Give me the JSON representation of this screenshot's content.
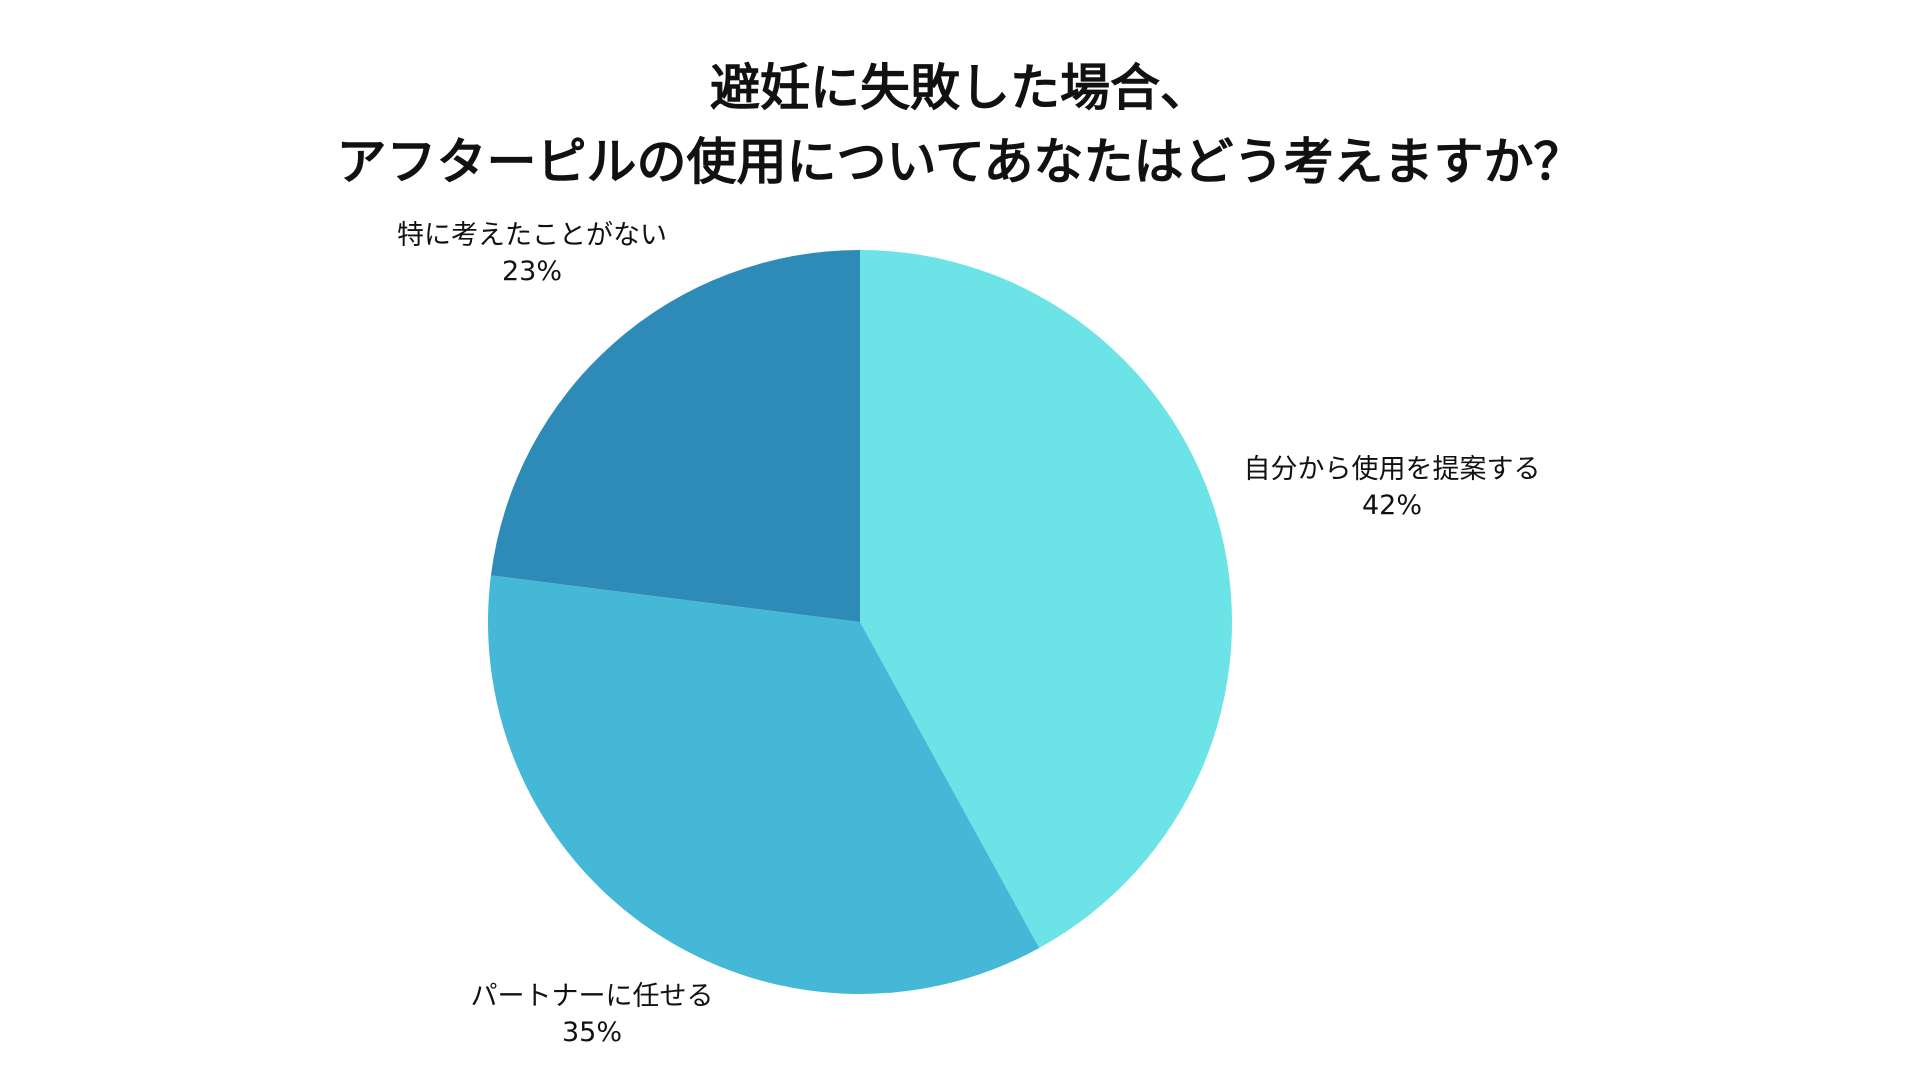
{
  "chart_data": {
    "type": "pie",
    "title": [
      "避妊に失敗した場合、",
      "アフターピルの使用についてあなたはどう考えますか？"
    ],
    "slices": [
      {
        "label": "自分から使用を提案する",
        "value": 42,
        "value_label": "42%",
        "color": "#6ce3e6",
        "label_anchor": "right"
      },
      {
        "label": "パートナーに任せる",
        "value": 35,
        "value_label": "35%",
        "color": "#44b8d6",
        "label_anchor": "bottom-left"
      },
      {
        "label": "特に考えたことがない",
        "value": 23,
        "value_label": "23%",
        "color": "#2e8bb8",
        "label_anchor": "top-left"
      }
    ],
    "start_angle": "12 o'clock",
    "direction": "clockwise",
    "legend": "none"
  }
}
